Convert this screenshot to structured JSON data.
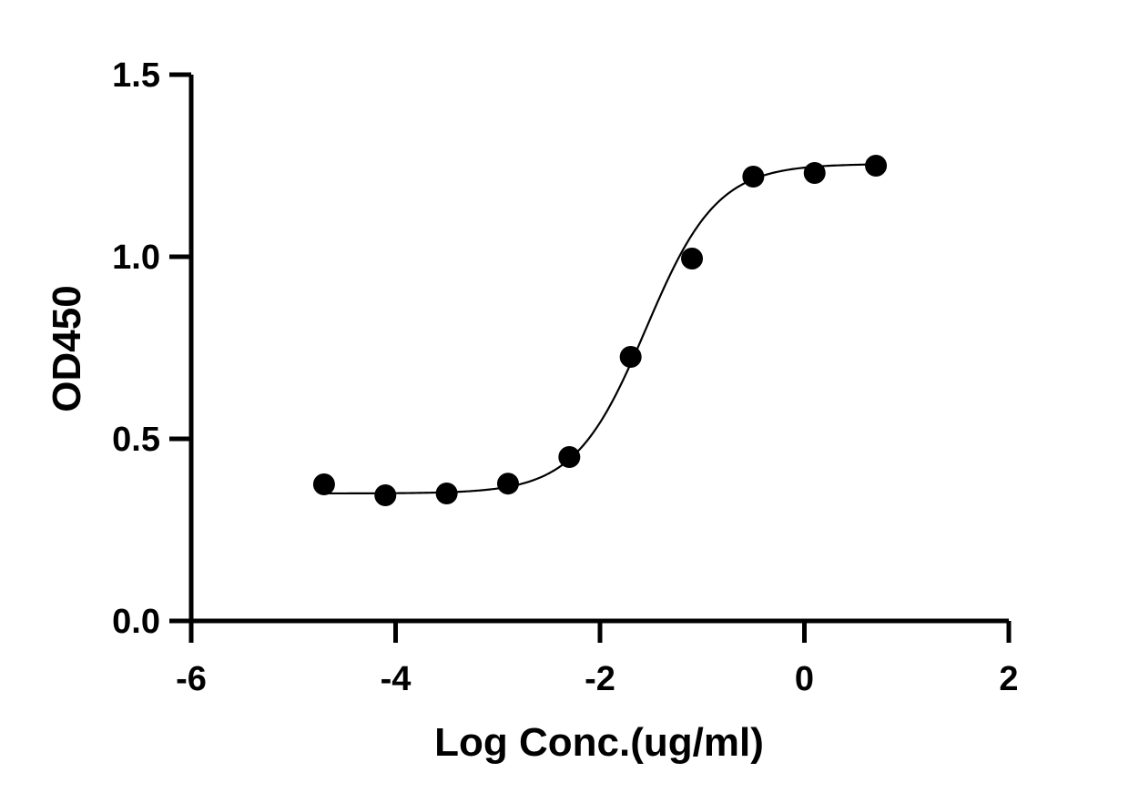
{
  "chart_data": {
    "type": "scatter",
    "title": "",
    "xlabel": "Log Conc.(ug/ml)",
    "ylabel": "OD450",
    "xlim": [
      -6,
      2
    ],
    "ylim": [
      0,
      1.5
    ],
    "x_ticks": [
      -6,
      -4,
      -2,
      0,
      2
    ],
    "x_tick_labels": [
      "-6",
      "-4",
      "-2",
      "0",
      "2"
    ],
    "y_ticks": [
      0,
      0.5,
      1,
      1.5
    ],
    "y_tick_labels": [
      "0.0",
      "0.5",
      "1.0",
      "1.5"
    ],
    "grid": false,
    "legend": "none",
    "series": [
      {
        "x": [
          -4.7,
          -4.1,
          -3.5,
          -2.9,
          -2.3,
          -1.7,
          -1.1,
          -0.5,
          0.1,
          0.7
        ],
        "y": [
          0.375,
          0.345,
          0.35,
          0.377,
          0.45,
          0.725,
          0.995,
          1.22,
          1.23,
          1.25
        ]
      }
    ],
    "fit_curve": {
      "model": "4PL sigmoid",
      "bottom": 0.35,
      "top": 1.255,
      "log_ec50": -1.55,
      "hill_slope": 1.25,
      "x_range": [
        -4.7,
        0.7
      ]
    },
    "colors": {
      "marker": "#000000",
      "line": "#000000",
      "axis": "#000000"
    }
  }
}
